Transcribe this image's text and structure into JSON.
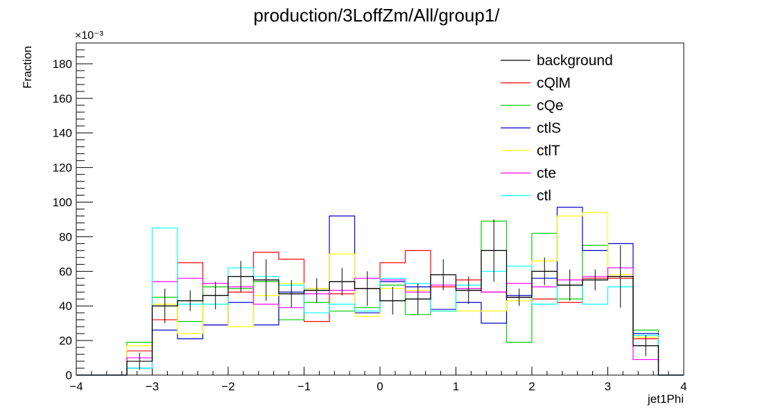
{
  "chart_data": {
    "type": "line",
    "title": "production/3LoffZm/All/group1/",
    "xlabel": "jet1Phi",
    "ylabel": "Fraction",
    "y_exponent": "×10⁻³",
    "xlim": [
      -4,
      4
    ],
    "ylim": [
      0,
      192
    ],
    "x_ticks": [
      -4,
      -3,
      -2,
      -1,
      0,
      1,
      2,
      3,
      4
    ],
    "x_tick_labels": [
      "−4",
      "−3",
      "−2",
      "−1",
      "0",
      "1",
      "2",
      "3",
      "4"
    ],
    "y_ticks": [
      0,
      20,
      40,
      60,
      80,
      100,
      120,
      140,
      160,
      180
    ],
    "y_tick_labels": [
      "0",
      "20",
      "40",
      "60",
      "80",
      "100",
      "120",
      "140",
      "160",
      "180"
    ],
    "legend_position": "top-right",
    "bin_edges": [
      -4.0,
      -3.6667,
      -3.3333,
      -3.0,
      -2.6667,
      -2.3333,
      -2.0,
      -1.6667,
      -1.3333,
      -1.0,
      -0.6667,
      -0.3333,
      0.0,
      0.3333,
      0.6667,
      1.0,
      1.3333,
      1.6667,
      2.0,
      2.3333,
      2.6667,
      3.0,
      3.3333,
      3.6667,
      4.0
    ],
    "series": [
      {
        "name": "background",
        "color": "#000000",
        "values": [
          0,
          0,
          8,
          40,
          43,
          46,
          57,
          55,
          47,
          49,
          54,
          50,
          43,
          44,
          58,
          49,
          72,
          45,
          60,
          52,
          55,
          57,
          17,
          0
        ],
        "errors": [
          0,
          0,
          5,
          10,
          6,
          8,
          9,
          12,
          8,
          7,
          8,
          10,
          8,
          9,
          9,
          8,
          18,
          5,
          8,
          9,
          6,
          18,
          6,
          0
        ]
      },
      {
        "name": "cQlM",
        "color": "#ff0000",
        "values": [
          0,
          0,
          14,
          32,
          65,
          29,
          48,
          71,
          67,
          31,
          47,
          50,
          65,
          72,
          51,
          55,
          48,
          45,
          44,
          42,
          56,
          56,
          21,
          0
        ]
      },
      {
        "name": "cQe",
        "color": "#00cc00",
        "values": [
          0,
          0,
          19,
          45,
          31,
          51,
          50,
          54,
          32,
          42,
          37,
          39,
          52,
          35,
          37,
          50,
          89,
          19,
          82,
          44,
          75,
          57,
          26,
          0
        ]
      },
      {
        "name": "ctlS",
        "color": "#0000cc",
        "values": [
          0,
          0,
          4,
          26,
          21,
          29,
          42,
          29,
          48,
          50,
          92,
          36,
          54,
          51,
          38,
          42,
          30,
          46,
          56,
          97,
          72,
          76,
          24,
          0
        ]
      },
      {
        "name": "ctlT",
        "color": "#ffff00",
        "values": [
          0,
          0,
          17,
          41,
          24,
          41,
          28,
          46,
          53,
          50,
          70,
          34,
          50,
          49,
          37,
          37,
          37,
          43,
          66,
          92,
          94,
          58,
          22,
          0
        ]
      },
      {
        "name": "cte",
        "color": "#ff00ff",
        "values": [
          0,
          0,
          10,
          54,
          56,
          53,
          51,
          41,
          39,
          47,
          49,
          56,
          55,
          48,
          52,
          50,
          48,
          53,
          51,
          55,
          57,
          62,
          9,
          0
        ]
      },
      {
        "name": "ctl",
        "color": "#00ffff",
        "values": [
          0,
          0,
          4,
          85,
          41,
          41,
          62,
          57,
          52,
          36,
          41,
          37,
          56,
          53,
          37,
          52,
          60,
          63,
          41,
          52,
          41,
          51,
          23,
          0
        ]
      }
    ]
  }
}
